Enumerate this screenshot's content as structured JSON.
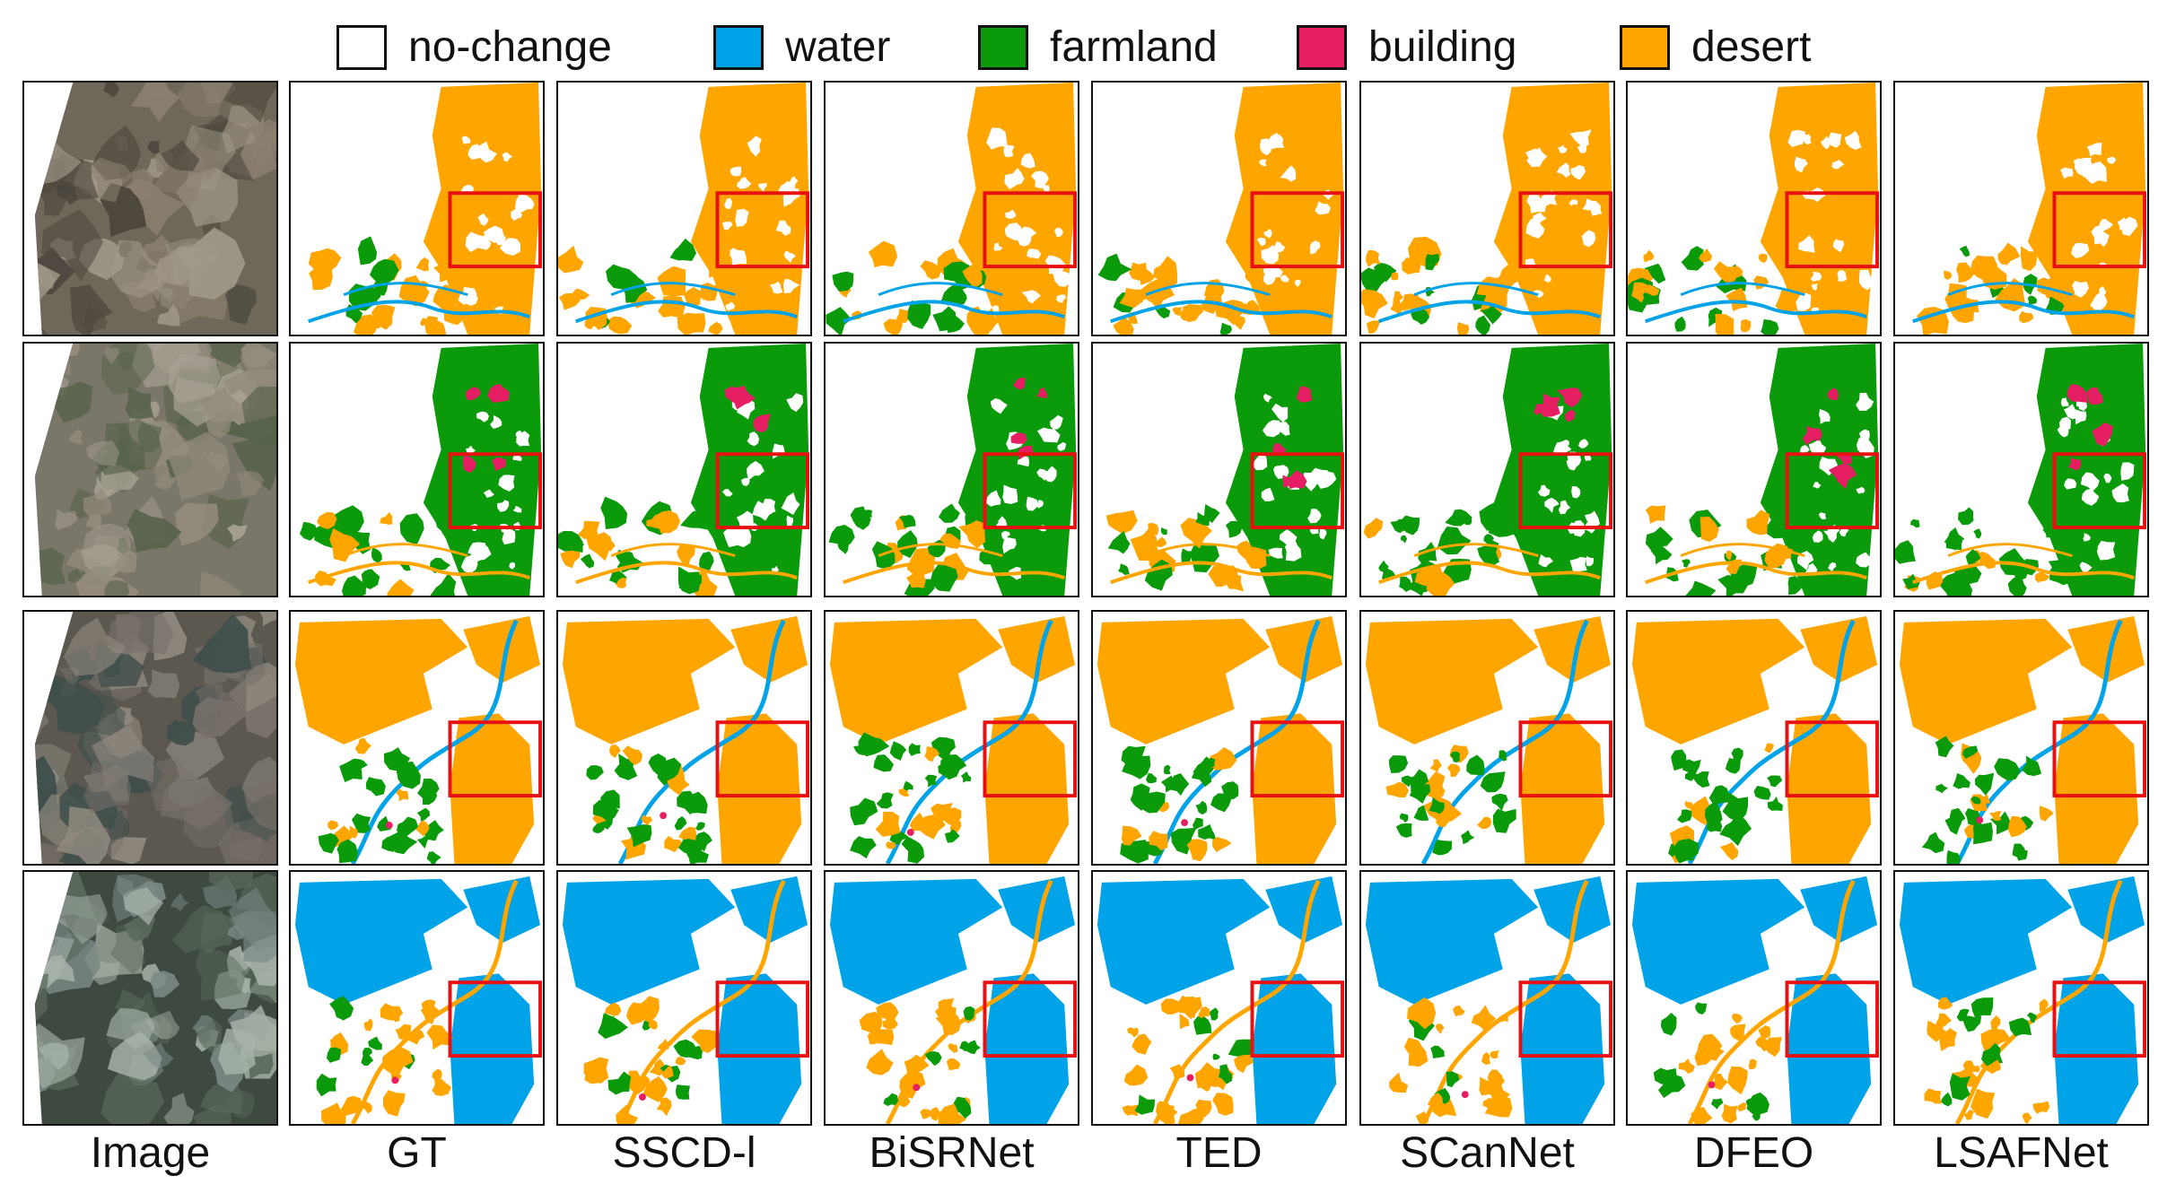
{
  "legend": [
    {
      "label": "no-change",
      "color": "#ffffff"
    },
    {
      "label": "water",
      "color": "#00a2e8"
    },
    {
      "label": "farmland",
      "color": "#0a9a0a"
    },
    {
      "label": "building",
      "color": "#e61e64"
    },
    {
      "label": "desert",
      "color": "#ffa500"
    }
  ],
  "columns": [
    "Image",
    "GT",
    "SSCD-l",
    "BiSRNet",
    "TED",
    "SCanNet",
    "DFEO",
    "LSAFNet"
  ],
  "rows": [
    {
      "dominant_class": "desert"
    },
    {
      "dominant_class": "farmland"
    },
    {
      "dominant_class": "desert"
    },
    {
      "dominant_class": "water"
    }
  ],
  "highlight_color": "#e81010"
}
